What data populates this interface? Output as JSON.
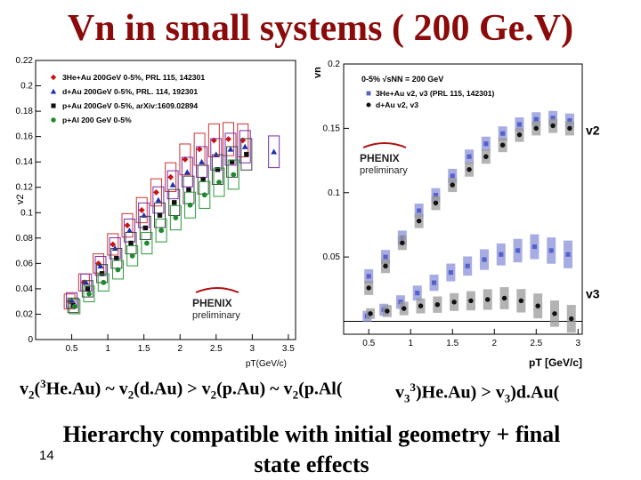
{
  "slide": {
    "title": "Vn in small systems ( 200 Ge.V)",
    "caption_left": {
      "t1": "v",
      "s1": "2",
      "t2": "(",
      "sup1": "3",
      "t3": "He.Au) ~ v",
      "s2": "2",
      "t4": "(d.Au) > v",
      "s3": "2",
      "t5": "(p.Au) ~ v",
      "s4": "2",
      "t6": "(p.Al("
    },
    "caption_right": {
      "t1": "v",
      "s1": "3",
      "sup1": "3",
      "t2": ")He.Au) > v",
      "s2": "3",
      "t3": ")d.Au("
    },
    "conclusion_line1": "Hierarchy compatible with initial geometry + final",
    "conclusion_line2": "state effects",
    "page_number": "14"
  },
  "chart_data": [
    {
      "type": "scatter",
      "title": "",
      "xlabel": "pT(GeV/c)",
      "ylabel": "v2",
      "xlim": [
        0,
        3.6
      ],
      "ylim": [
        0,
        0.22
      ],
      "xticks": [
        "0.5",
        "1",
        "1.5",
        "2",
        "2.5",
        "3",
        "3.5"
      ],
      "yticks": [
        "0",
        "0.02",
        "0.04",
        "0.06",
        "0.08",
        "0.1",
        "0.12",
        "0.14",
        "0.16",
        "0.18",
        "0.2",
        "0.22"
      ],
      "legend": [
        "3He+Au 200GeV 0-5%, PRL 115, 142301",
        "d+Au 200GeV 0-5%, PRL. 114, 192301",
        "p+Au 200GeV 0-5%, arXiv:1609.02894",
        "p+Al 200 GeV 0-5%"
      ],
      "logo": "PHENIX",
      "logo_sub": "preliminary",
      "series": [
        {
          "name": "3He+Au",
          "color": "#cc1111",
          "marker": "diamond",
          "x": [
            0.5,
            0.7,
            0.9,
            1.1,
            1.3,
            1.5,
            1.7,
            1.9,
            2.1,
            2.3,
            2.5,
            2.7,
            2.9
          ],
          "y": [
            0.03,
            0.045,
            0.06,
            0.075,
            0.09,
            0.102,
            0.116,
            0.128,
            0.142,
            0.15,
            0.157,
            0.158,
            0.157
          ]
        },
        {
          "name": "d+Au",
          "color": "#1a2fb0",
          "marker": "triangle",
          "x": [
            0.5,
            0.7,
            0.9,
            1.1,
            1.3,
            1.5,
            1.7,
            1.9,
            2.1,
            2.3,
            2.5,
            2.7,
            2.9,
            3.3
          ],
          "y": [
            0.031,
            0.045,
            0.058,
            0.072,
            0.086,
            0.098,
            0.11,
            0.122,
            0.132,
            0.14,
            0.146,
            0.15,
            0.152,
            0.148
          ]
        },
        {
          "name": "p+Au",
          "color": "#111111",
          "marker": "square",
          "x": [
            0.5,
            0.7,
            0.9,
            1.1,
            1.3,
            1.5,
            1.7,
            1.9,
            2.1,
            2.3,
            2.5,
            2.7,
            2.9
          ],
          "y": [
            0.027,
            0.04,
            0.052,
            0.064,
            0.076,
            0.088,
            0.098,
            0.108,
            0.118,
            0.126,
            0.134,
            0.14,
            0.146
          ]
        },
        {
          "name": "p+Al",
          "color": "#1e8a2e",
          "marker": "circle",
          "x": [
            0.5,
            0.7,
            0.9,
            1.1,
            1.3,
            1.5,
            1.7,
            1.9,
            2.1,
            2.3,
            2.5,
            2.7
          ],
          "y": [
            0.026,
            0.036,
            0.045,
            0.055,
            0.066,
            0.076,
            0.086,
            0.096,
            0.106,
            0.114,
            0.124,
            0.13
          ]
        }
      ]
    },
    {
      "type": "scatter",
      "title": "",
      "xlabel": "pT [GeV/c]",
      "ylabel": "vn",
      "xlim": [
        0.2,
        3.05
      ],
      "ylim": [
        -0.01,
        0.2
      ],
      "xticks": [
        "0.5",
        "1",
        "1.5",
        "2",
        "2.5",
        "3"
      ],
      "yticks": [
        "0.05",
        "0.1",
        "0.15",
        "0.2"
      ],
      "legend_header": "0-5% √sNN = 200 GeV",
      "legend": [
        "3He+Au v2, v3 (PRL 115, 142301)",
        "d+Au v2, v3"
      ],
      "labels": [
        "v2",
        "v3"
      ],
      "logo": "PHENIX",
      "logo_sub": "preliminary",
      "series": [
        {
          "name": "3He+Au v2",
          "color": "#5560c8",
          "marker": "square",
          "x": [
            0.5,
            0.7,
            0.9,
            1.1,
            1.3,
            1.5,
            1.7,
            1.9,
            2.1,
            2.3,
            2.5,
            2.7,
            2.9
          ],
          "y": [
            0.035,
            0.05,
            0.065,
            0.086,
            0.098,
            0.113,
            0.128,
            0.138,
            0.146,
            0.153,
            0.157,
            0.158,
            0.156
          ]
        },
        {
          "name": "d+Au v2",
          "color": "#111111",
          "marker": "circle",
          "x": [
            0.5,
            0.7,
            0.9,
            1.1,
            1.3,
            1.5,
            1.7,
            1.9,
            2.1,
            2.3,
            2.5,
            2.7,
            2.9
          ],
          "y": [
            0.026,
            0.043,
            0.061,
            0.078,
            0.092,
            0.106,
            0.118,
            0.128,
            0.137,
            0.145,
            0.15,
            0.152,
            0.15
          ]
        },
        {
          "name": "3He+Au v3",
          "color": "#5560c8",
          "marker": "square",
          "x": [
            0.5,
            0.7,
            0.9,
            1.1,
            1.3,
            1.5,
            1.7,
            1.9,
            2.1,
            2.3,
            2.5,
            2.7,
            2.9
          ],
          "y": [
            0.004,
            0.009,
            0.015,
            0.022,
            0.03,
            0.038,
            0.043,
            0.048,
            0.052,
            0.055,
            0.058,
            0.055,
            0.052
          ]
        },
        {
          "name": "d+Au v3",
          "color": "#111111",
          "marker": "circle",
          "x": [
            0.5,
            0.7,
            0.9,
            1.1,
            1.3,
            1.5,
            1.7,
            1.9,
            2.1,
            2.3,
            2.5,
            2.7,
            2.9
          ],
          "y": [
            0.006,
            0.008,
            0.01,
            0.012,
            0.013,
            0.015,
            0.016,
            0.017,
            0.018,
            0.016,
            0.012,
            0.006,
            0.002
          ]
        }
      ]
    }
  ]
}
